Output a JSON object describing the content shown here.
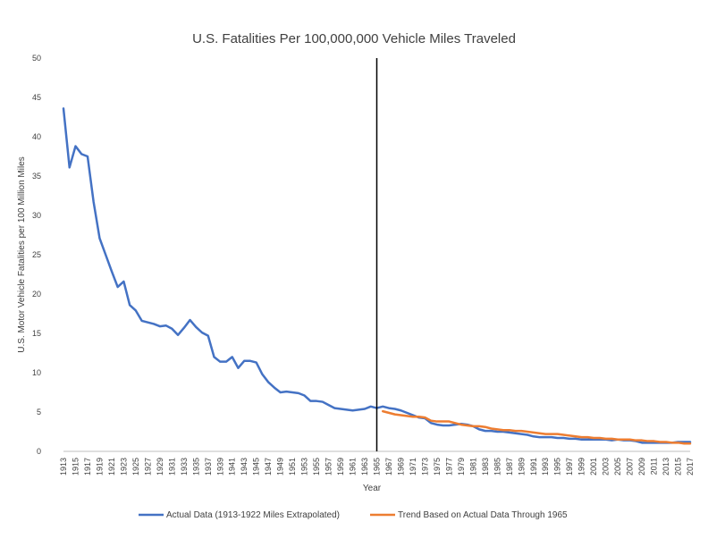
{
  "chart_data": {
    "type": "line",
    "title": "U.S. Fatalities Per 100,000,000 Vehicle Miles Traveled",
    "xlabel": "Year",
    "ylabel": "U.S. Motor Vehicle Fatalities per 100 Million Miles",
    "xlim": [
      1913,
      2017
    ],
    "ylim": [
      0,
      50
    ],
    "y_ticks": [
      0,
      5,
      10,
      15,
      20,
      25,
      30,
      35,
      40,
      45,
      50
    ],
    "x_tick_labels": [
      "1913",
      "1915",
      "1917",
      "1919",
      "1921",
      "1923",
      "1925",
      "1927",
      "1929",
      "1931",
      "1933",
      "1935",
      "1937",
      "1939",
      "1941",
      "1943",
      "1945",
      "1947",
      "1949",
      "1951",
      "1953",
      "1955",
      "1957",
      "1959",
      "1961",
      "1963",
      "1965",
      "1967",
      "1969",
      "1971",
      "1973",
      "1975",
      "1977",
      "1979",
      "1981",
      "1983",
      "1985",
      "1987",
      "1989",
      "1991",
      "1993",
      "1995",
      "1997",
      "1999",
      "2001",
      "2003",
      "2005",
      "2007",
      "2009",
      "2011",
      "2013",
      "2015",
      "2017"
    ],
    "vertical_line_x": 1965,
    "grid": false,
    "legend_position": "bottom",
    "series": [
      {
        "name": "Actual Data (1913-1922 Miles Extrapolated)",
        "color": "#4472C4",
        "x": [
          1913,
          1914,
          1915,
          1916,
          1917,
          1918,
          1919,
          1920,
          1921,
          1922,
          1923,
          1924,
          1925,
          1926,
          1927,
          1928,
          1929,
          1930,
          1931,
          1932,
          1933,
          1934,
          1935,
          1936,
          1937,
          1938,
          1939,
          1940,
          1941,
          1942,
          1943,
          1944,
          1945,
          1946,
          1947,
          1948,
          1949,
          1950,
          1951,
          1952,
          1953,
          1954,
          1955,
          1956,
          1957,
          1958,
          1959,
          1960,
          1961,
          1962,
          1963,
          1964,
          1965,
          1966,
          1967,
          1968,
          1969,
          1970,
          1971,
          1972,
          1973,
          1974,
          1975,
          1976,
          1977,
          1978,
          1979,
          1980,
          1981,
          1982,
          1983,
          1984,
          1985,
          1986,
          1987,
          1988,
          1989,
          1990,
          1991,
          1992,
          1993,
          1994,
          1995,
          1996,
          1997,
          1998,
          1999,
          2000,
          2001,
          2002,
          2003,
          2004,
          2005,
          2006,
          2007,
          2008,
          2009,
          2010,
          2011,
          2012,
          2013,
          2014,
          2015,
          2016,
          2017
        ],
        "y": [
          43.6,
          36.1,
          38.8,
          37.8,
          37.5,
          31.7,
          27.1,
          25.0,
          22.9,
          20.9,
          21.6,
          18.6,
          17.9,
          16.6,
          16.4,
          16.2,
          15.9,
          16.0,
          15.6,
          14.8,
          15.7,
          16.7,
          15.8,
          15.1,
          14.7,
          12.0,
          11.4,
          11.4,
          12.0,
          10.6,
          11.5,
          11.5,
          11.3,
          9.8,
          8.8,
          8.1,
          7.5,
          7.6,
          7.5,
          7.4,
          7.1,
          6.4,
          6.4,
          6.3,
          5.9,
          5.5,
          5.4,
          5.3,
          5.2,
          5.3,
          5.4,
          5.7,
          5.5,
          5.7,
          5.5,
          5.4,
          5.2,
          4.9,
          4.6,
          4.3,
          4.2,
          3.6,
          3.4,
          3.3,
          3.3,
          3.4,
          3.5,
          3.4,
          3.2,
          2.8,
          2.6,
          2.6,
          2.5,
          2.5,
          2.4,
          2.3,
          2.2,
          2.1,
          1.9,
          1.8,
          1.8,
          1.8,
          1.7,
          1.7,
          1.6,
          1.6,
          1.5,
          1.5,
          1.5,
          1.5,
          1.5,
          1.4,
          1.5,
          1.4,
          1.4,
          1.3,
          1.1,
          1.1,
          1.1,
          1.1,
          1.1,
          1.1,
          1.2,
          1.2,
          1.2
        ]
      },
      {
        "name": "Trend Based on Actual Data Through 1965",
        "color": "#ED7D31",
        "x": [
          1966,
          1967,
          1968,
          1969,
          1970,
          1971,
          1972,
          1973,
          1974,
          1975,
          1976,
          1977,
          1978,
          1979,
          1980,
          1981,
          1982,
          1983,
          1984,
          1985,
          1986,
          1987,
          1988,
          1989,
          1990,
          1991,
          1992,
          1993,
          1994,
          1995,
          1996,
          1997,
          1998,
          1999,
          2000,
          2001,
          2002,
          2003,
          2004,
          2005,
          2006,
          2007,
          2008,
          2009,
          2010,
          2011,
          2012,
          2013,
          2014,
          2015,
          2016,
          2017
        ],
        "y": [
          5.1,
          4.9,
          4.7,
          4.6,
          4.5,
          4.4,
          4.4,
          4.3,
          3.9,
          3.8,
          3.8,
          3.8,
          3.6,
          3.4,
          3.3,
          3.2,
          3.2,
          3.1,
          2.9,
          2.8,
          2.7,
          2.7,
          2.6,
          2.6,
          2.5,
          2.4,
          2.3,
          2.2,
          2.2,
          2.2,
          2.1,
          2.0,
          1.9,
          1.8,
          1.8,
          1.7,
          1.7,
          1.6,
          1.6,
          1.5,
          1.5,
          1.5,
          1.4,
          1.4,
          1.3,
          1.3,
          1.2,
          1.2,
          1.1,
          1.1,
          1.0,
          1.0
        ]
      }
    ]
  }
}
